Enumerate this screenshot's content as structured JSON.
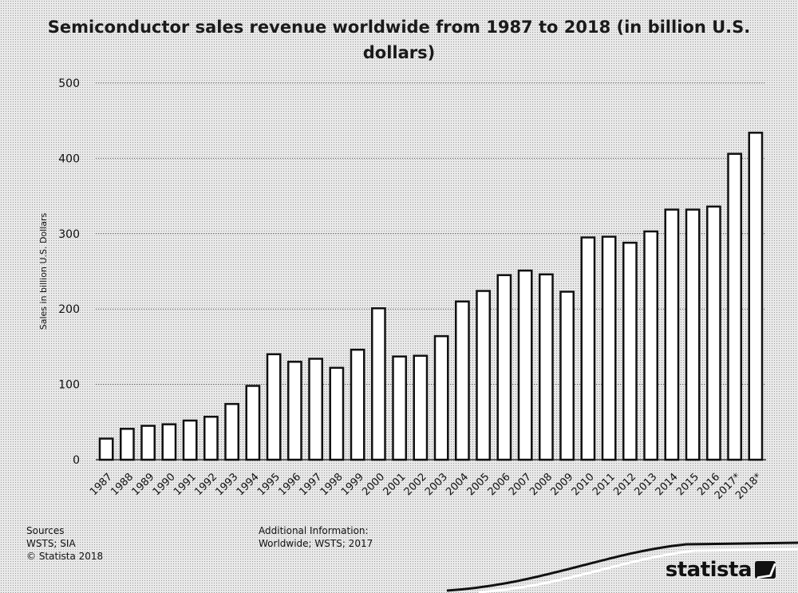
{
  "chart_data": {
    "type": "bar",
    "title": "Semiconductor sales revenue worldwide from 1987 to 2018 (in billion U.S. dollars)",
    "ylabel": "Sales in billion U.S. Dollars",
    "xlabel": "",
    "ylim": [
      0,
      500
    ],
    "yticks": [
      0,
      100,
      200,
      300,
      400,
      500
    ],
    "grid": true,
    "categories": [
      "1987",
      "1988",
      "1989",
      "1990",
      "1991",
      "1992",
      "1993",
      "1994",
      "1995",
      "1996",
      "1997",
      "1998",
      "1999",
      "2000",
      "2001",
      "2002",
      "2003",
      "2004",
      "2005",
      "2006",
      "2007",
      "2008",
      "2009",
      "2010",
      "2011",
      "2012",
      "2013",
      "2014",
      "2015",
      "2016",
      "2017*",
      "2018*"
    ],
    "values": [
      28,
      41,
      45,
      47,
      52,
      57,
      74,
      98,
      140,
      130,
      134,
      122,
      146,
      201,
      137,
      138,
      164,
      210,
      224,
      245,
      251,
      246,
      223,
      295,
      296,
      288,
      303,
      332,
      332,
      336,
      406,
      434
    ]
  },
  "footer": {
    "sources_heading": "Sources",
    "sources_line1": "WSTS; SIA",
    "sources_line2": "© Statista 2018",
    "additional_heading": "Additional Information:",
    "additional_line1": "Worldwide; WSTS; 2017"
  },
  "brand": {
    "name": "statista"
  }
}
